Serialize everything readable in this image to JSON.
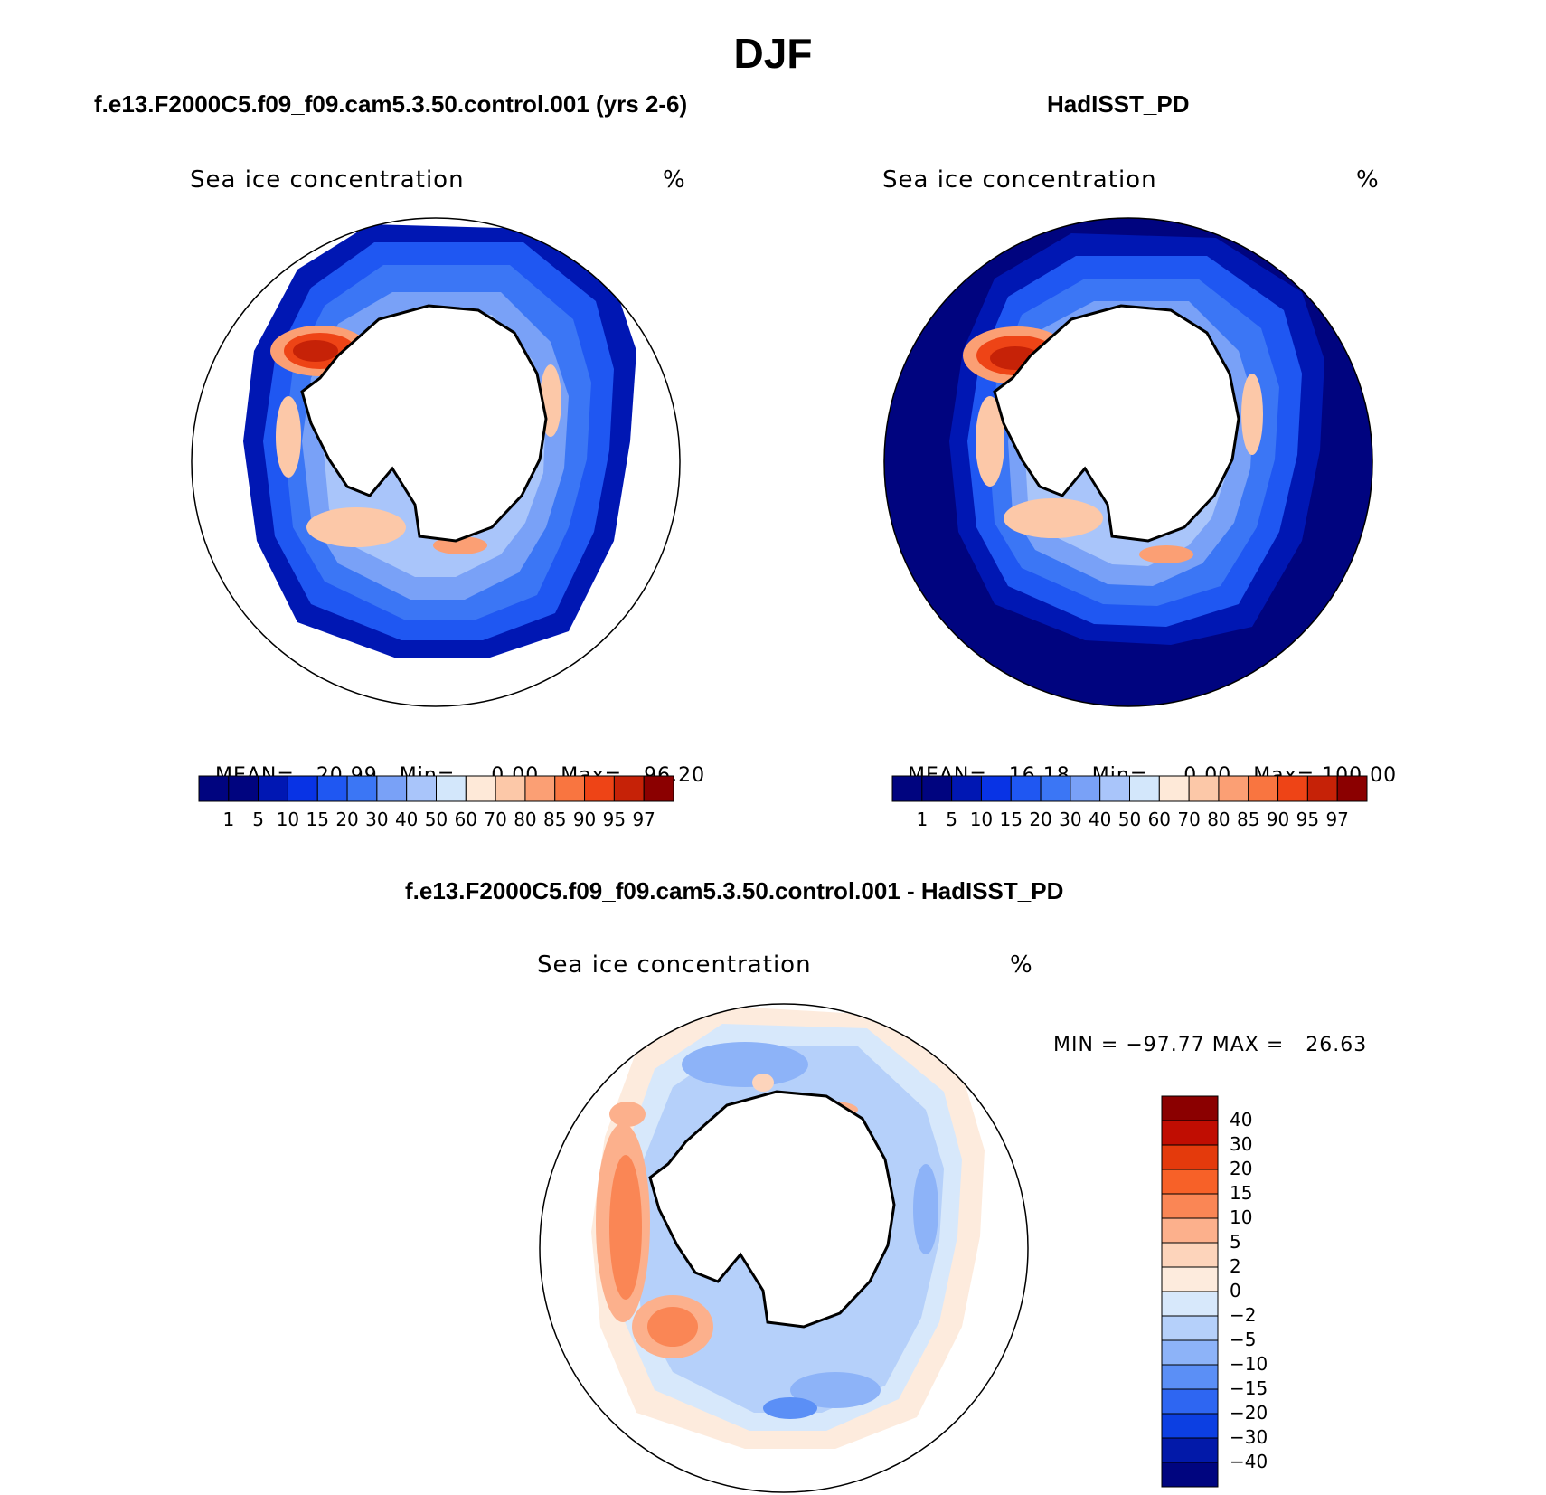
{
  "title": "DJF",
  "panels": [
    {
      "title": "f.e13.F2000C5.f09_f09.cam5.3.50.control.001 (yrs 2-6)",
      "variable": "Sea ice concentration",
      "units": "%",
      "stats": {
        "mean_label": "MEAN=",
        "mean": "20.99",
        "min_label": "Min=",
        "min": "0.00",
        "max_label": "Max=",
        "max": "96.20"
      }
    },
    {
      "title": "HadISST_PD",
      "variable": "Sea ice concentration",
      "units": "%",
      "stats": {
        "mean_label": "MEAN=",
        "mean": "16.18",
        "min_label": "Min=",
        "min": "0.00",
        "max_label": "Max=",
        "max": "100.00"
      }
    },
    {
      "title": "f.e13.F2000C5.f09_f09.cam5.3.50.control.001 - HadISST_PD",
      "variable": "Sea ice concentration",
      "units": "%",
      "minmax": "MIN = −97.77 MAX =   26.63"
    }
  ],
  "colorbar_levels": [
    "1",
    "5",
    "10",
    "15",
    "20",
    "30",
    "40",
    "50",
    "60",
    "70",
    "80",
    "85",
    "90",
    "95",
    "97"
  ],
  "colorbar_colors": [
    "#00047f",
    "#0017b3",
    "#0833e5",
    "#1f57f2",
    "#3b76f5",
    "#79a1f7",
    "#a9c5fa",
    "#d3e7fb",
    "#fee9d8",
    "#fcc8a8",
    "#fb9f74",
    "#f97540",
    "#ee4416",
    "#c62207",
    "#8b0000"
  ],
  "diff_colorbar_levels": [
    "40",
    "30",
    "20",
    "15",
    "10",
    "5",
    "2",
    "0",
    "−2",
    "−5",
    "−10",
    "−15",
    "−20",
    "−30",
    "−40"
  ],
  "diff_colorbar_colors": [
    "#8b0000",
    "#c00d02",
    "#e43a0c",
    "#f76128",
    "#fa8655",
    "#fcb08c",
    "#fdd4bb",
    "#fdebdd",
    "#d7e8fb",
    "#b5d0fa",
    "#8db3f8",
    "#5b8ff6",
    "#2e66f2",
    "#0c3fe2",
    "#0219a9",
    "#00057f"
  ],
  "map_colors": {
    "ocean_bg": "#00047f",
    "land": "#ffffff",
    "coast": "#000000"
  }
}
